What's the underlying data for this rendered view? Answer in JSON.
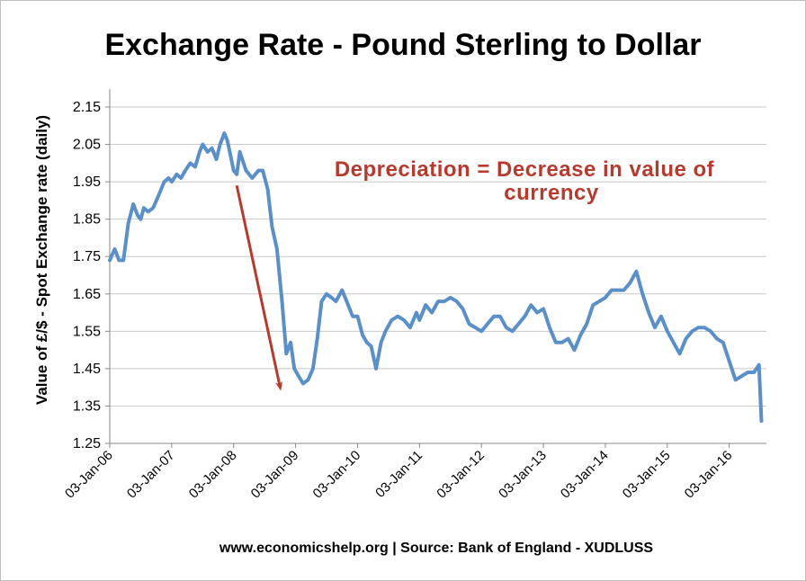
{
  "chart_data": {
    "type": "line",
    "title": "Exchange Rate - Pound Sterling to Dollar",
    "ylabel": "Value of £/$ - Spot Exchange rate (daily)",
    "source": "www.economicshelp.org | Source: Bank of England - XUDLUSS",
    "annotation": {
      "line1": "Depreciation = Decrease in value of",
      "line2": "currency",
      "color": "#b73a2e",
      "arrow_from": {
        "x": 2008.05,
        "y": 1.94
      },
      "arrow_to": {
        "x": 2008.75,
        "y": 1.4
      }
    },
    "ylim": [
      1.25,
      2.15
    ],
    "yticks": [
      "1.25",
      "1.35",
      "1.45",
      "1.55",
      "1.65",
      "1.75",
      "1.85",
      "1.95",
      "2.05",
      "2.15"
    ],
    "xlim": [
      2006.0,
      2016.6
    ],
    "xticks": [
      {
        "label": "03-Jan-06",
        "x": 2006.0
      },
      {
        "label": "03-Jan-07",
        "x": 2007.0
      },
      {
        "label": "03-Jan-08",
        "x": 2008.0
      },
      {
        "label": "03-Jan-09",
        "x": 2009.0
      },
      {
        "label": "03-Jan-10",
        "x": 2010.0
      },
      {
        "label": "03-Jan-11",
        "x": 2011.0
      },
      {
        "label": "03-Jan-12",
        "x": 2012.0
      },
      {
        "label": "03-Jan-13",
        "x": 2013.0
      },
      {
        "label": "03-Jan-14",
        "x": 2014.0
      },
      {
        "label": "03-Jan-15",
        "x": 2015.0
      },
      {
        "label": "03-Jan-16",
        "x": 2016.0
      }
    ],
    "grid": true,
    "series": [
      {
        "name": "",
        "color": "#5b8fc7",
        "x": [
          2006.0,
          2006.08,
          2006.15,
          2006.22,
          2006.3,
          2006.38,
          2006.45,
          2006.5,
          2006.55,
          2006.62,
          2006.7,
          2006.78,
          2006.88,
          2006.95,
          2007.0,
          2007.08,
          2007.15,
          2007.22,
          2007.3,
          2007.38,
          2007.45,
          2007.5,
          2007.58,
          2007.65,
          2007.72,
          2007.78,
          2007.85,
          2007.9,
          2007.95,
          2008.0,
          2008.05,
          2008.1,
          2008.2,
          2008.3,
          2008.4,
          2008.47,
          2008.55,
          2008.62,
          2008.7,
          2008.78,
          2008.85,
          2008.92,
          2008.98,
          2009.05,
          2009.12,
          2009.2,
          2009.28,
          2009.35,
          2009.42,
          2009.5,
          2009.58,
          2009.65,
          2009.75,
          2009.85,
          2009.92,
          2010.0,
          2010.08,
          2010.15,
          2010.22,
          2010.3,
          2010.38,
          2010.45,
          2010.55,
          2010.65,
          2010.75,
          2010.85,
          2010.95,
          2011.0,
          2011.1,
          2011.2,
          2011.3,
          2011.4,
          2011.5,
          2011.6,
          2011.7,
          2011.8,
          2011.9,
          2012.0,
          2012.1,
          2012.2,
          2012.3,
          2012.4,
          2012.5,
          2012.6,
          2012.7,
          2012.8,
          2012.9,
          2013.0,
          2013.1,
          2013.2,
          2013.3,
          2013.4,
          2013.5,
          2013.6,
          2013.7,
          2013.8,
          2013.9,
          2014.0,
          2014.1,
          2014.2,
          2014.3,
          2014.4,
          2014.5,
          2014.6,
          2014.7,
          2014.8,
          2014.9,
          2015.0,
          2015.1,
          2015.2,
          2015.3,
          2015.4,
          2015.5,
          2015.6,
          2015.7,
          2015.8,
          2015.9,
          2016.0,
          2016.1,
          2016.2,
          2016.3,
          2016.4,
          2016.48,
          2016.52
        ],
        "values": [
          1.74,
          1.77,
          1.74,
          1.74,
          1.84,
          1.89,
          1.86,
          1.85,
          1.88,
          1.87,
          1.88,
          1.91,
          1.95,
          1.96,
          1.95,
          1.97,
          1.96,
          1.98,
          2.0,
          1.99,
          2.03,
          2.05,
          2.03,
          2.04,
          2.01,
          2.05,
          2.08,
          2.06,
          2.02,
          1.98,
          1.97,
          2.03,
          1.98,
          1.96,
          1.98,
          1.98,
          1.93,
          1.83,
          1.77,
          1.63,
          1.49,
          1.52,
          1.45,
          1.43,
          1.41,
          1.42,
          1.45,
          1.53,
          1.63,
          1.65,
          1.64,
          1.63,
          1.66,
          1.62,
          1.59,
          1.59,
          1.54,
          1.52,
          1.51,
          1.45,
          1.52,
          1.55,
          1.58,
          1.59,
          1.58,
          1.56,
          1.6,
          1.58,
          1.62,
          1.6,
          1.63,
          1.63,
          1.64,
          1.63,
          1.61,
          1.57,
          1.56,
          1.55,
          1.57,
          1.59,
          1.59,
          1.56,
          1.55,
          1.57,
          1.59,
          1.62,
          1.6,
          1.61,
          1.56,
          1.52,
          1.52,
          1.53,
          1.5,
          1.54,
          1.57,
          1.62,
          1.63,
          1.64,
          1.66,
          1.66,
          1.66,
          1.68,
          1.71,
          1.65,
          1.6,
          1.56,
          1.59,
          1.55,
          1.52,
          1.49,
          1.53,
          1.55,
          1.56,
          1.56,
          1.55,
          1.53,
          1.52,
          1.47,
          1.42,
          1.43,
          1.44,
          1.44,
          1.46,
          1.31
        ]
      }
    ]
  }
}
